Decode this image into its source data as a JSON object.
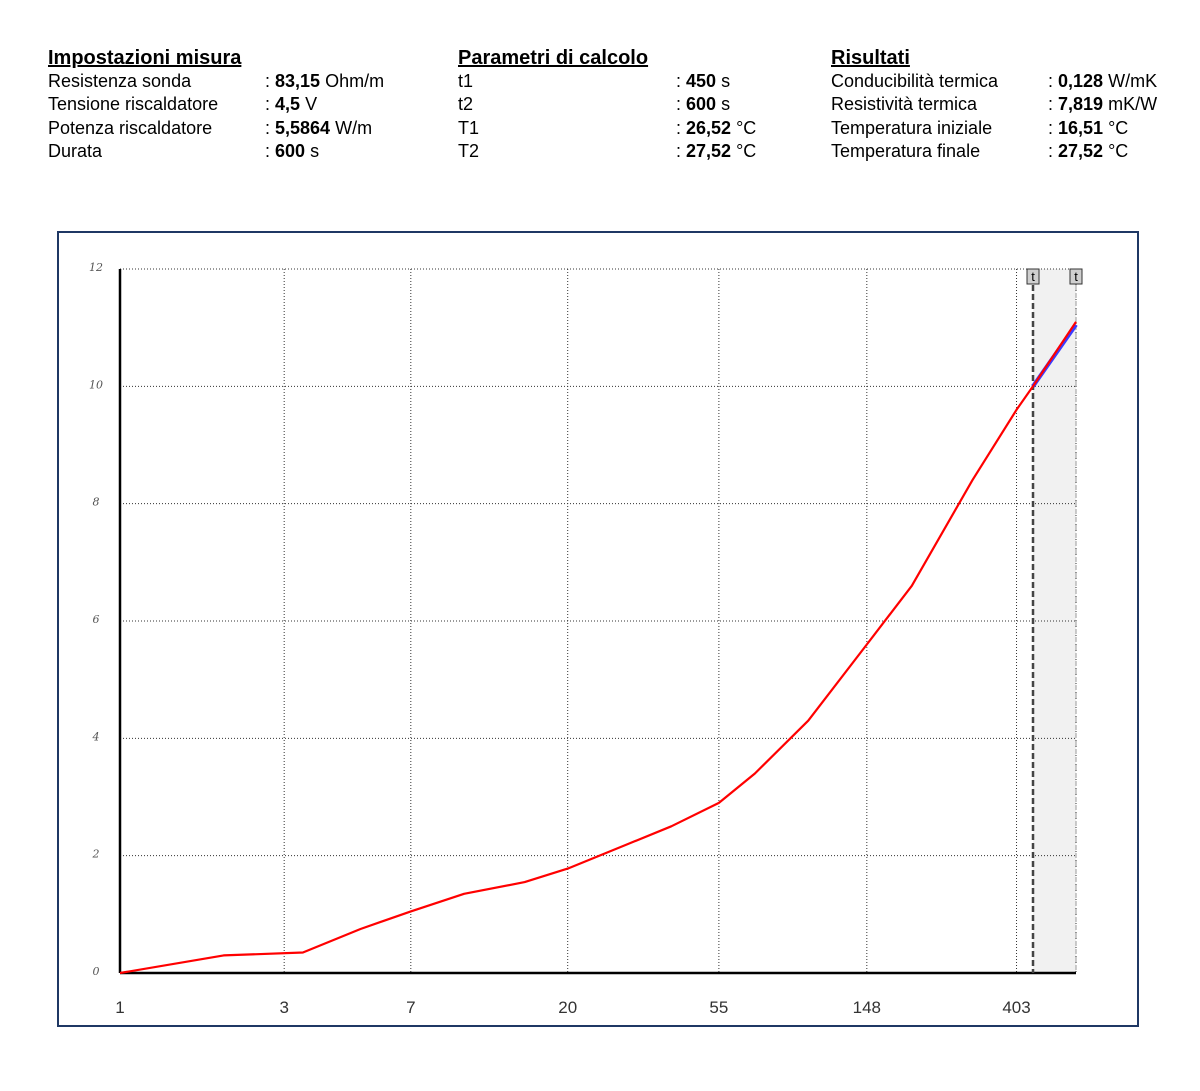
{
  "impostazioni": {
    "title": "Impostazioni misura",
    "rows": [
      {
        "label": "Resistenza sonda",
        "value": "83,15",
        "unit": "Ohm/m"
      },
      {
        "label": "Tensione riscaldatore",
        "value": "4,5",
        "unit": "V"
      },
      {
        "label": "Potenza riscaldatore",
        "value": "5,5864",
        "unit": "W/m"
      },
      {
        "label": "Durata",
        "value": "600",
        "unit": "s"
      }
    ]
  },
  "parametri": {
    "title": "Parametri di calcolo",
    "rows": [
      {
        "label": "t1",
        "value": "450",
        "unit": "s"
      },
      {
        "label": "t2",
        "value": "600",
        "unit": "s"
      },
      {
        "label": "T1",
        "value": "26,52",
        "unit": "°C"
      },
      {
        "label": "T2",
        "value": "27,52",
        "unit": "°C"
      }
    ]
  },
  "risultati": {
    "title": "Risultati",
    "rows": [
      {
        "label": "Conducibilità termica",
        "value": "0,128",
        "unit": "W/mK"
      },
      {
        "label": "Resistività termica",
        "value": "7,819",
        "unit": "mK/W"
      },
      {
        "label": "Temperatura iniziale",
        "value": "16,51",
        "unit": "°C"
      },
      {
        "label": "Temperatura finale",
        "value": "27,52",
        "unit": "°C"
      }
    ]
  },
  "chart_data": {
    "type": "line",
    "x_scale": "log",
    "xlim": [
      1,
      600
    ],
    "ylim": [
      0,
      12
    ],
    "x_ticks": [
      1,
      3,
      7,
      20,
      55,
      148,
      403
    ],
    "y_ticks": [
      0,
      2,
      4,
      6,
      8,
      10,
      12
    ],
    "grid": true,
    "colors": {
      "measured": "#ff0000",
      "fit": "#3b3bff",
      "frame": "#1f3864"
    },
    "series": [
      {
        "values": [
          {
            "x": 1,
            "y": 0.0
          },
          {
            "x": 2,
            "y": 0.3
          },
          {
            "x": 3.4,
            "y": 0.35
          },
          {
            "x": 5,
            "y": 0.75
          },
          {
            "x": 7,
            "y": 1.05
          },
          {
            "x": 10,
            "y": 1.35
          },
          {
            "x": 15,
            "y": 1.55
          },
          {
            "x": 20,
            "y": 1.78
          },
          {
            "x": 30,
            "y": 2.2
          },
          {
            "x": 40,
            "y": 2.5
          },
          {
            "x": 55,
            "y": 2.9
          },
          {
            "x": 70,
            "y": 3.4
          },
          {
            "x": 100,
            "y": 4.3
          },
          {
            "x": 148,
            "y": 5.6
          },
          {
            "x": 200,
            "y": 6.6
          },
          {
            "x": 300,
            "y": 8.4
          },
          {
            "x": 403,
            "y": 9.6
          },
          {
            "x": 450,
            "y": 10.0
          },
          {
            "x": 600,
            "y": 11.1
          }
        ]
      },
      {
        "values": [
          {
            "x": 450,
            "y": 10.0
          },
          {
            "x": 600,
            "y": 11.05
          }
        ]
      }
    ],
    "markers": [
      {
        "label": "t",
        "x": 450
      },
      {
        "label": "t",
        "x": 600
      }
    ]
  }
}
